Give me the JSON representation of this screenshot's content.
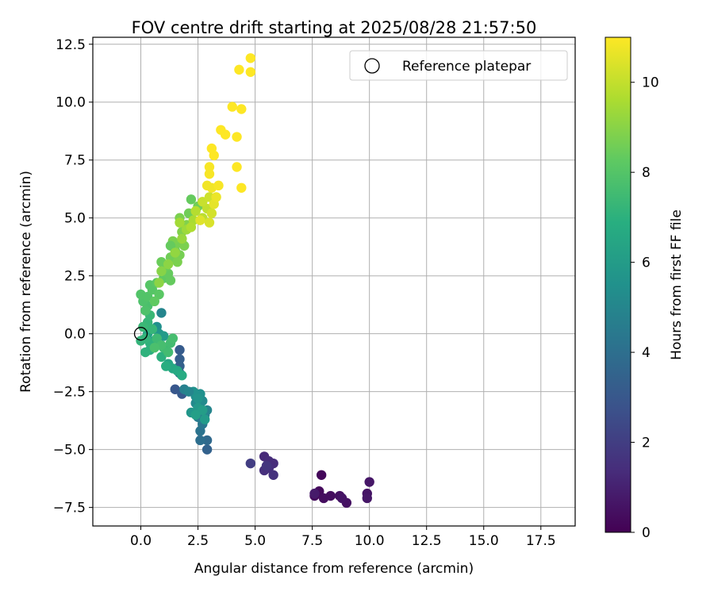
{
  "chart_data": {
    "type": "scatter",
    "title": "FOV centre drift starting at 2025/08/28 21:57:50",
    "xlabel": "Angular distance from reference (arcmin)",
    "ylabel": "Rotation from reference (arcmin)",
    "xlim": [
      -2.1,
      19.0
    ],
    "ylim": [
      -8.3,
      12.8
    ],
    "xticks": [
      0.0,
      2.5,
      5.0,
      7.5,
      10.0,
      12.5,
      15.0,
      17.5
    ],
    "xtick_labels": [
      "0.0",
      "2.5",
      "5.0",
      "7.5",
      "10.0",
      "12.5",
      "15.0",
      "17.5"
    ],
    "yticks": [
      -7.5,
      -5.0,
      -2.5,
      0.0,
      2.5,
      5.0,
      7.5,
      10.0,
      12.5
    ],
    "ytick_labels": [
      "−7.5",
      "−5.0",
      "−2.5",
      "0.0",
      "2.5",
      "5.0",
      "7.5",
      "10.0",
      "12.5"
    ],
    "grid": true,
    "legend": {
      "placement": "top-right",
      "entries": [
        "Reference platepar"
      ]
    },
    "reference_point": {
      "x": 0.0,
      "y": 0.0,
      "label": "Reference platepar"
    },
    "colorbar": {
      "label": "Hours from first FF file",
      "colormap": "viridis",
      "range": [
        0,
        11
      ],
      "ticks": [
        0,
        2,
        4,
        6,
        8,
        10
      ],
      "tick_labels": [
        "0",
        "2",
        "4",
        "6",
        "8",
        "10"
      ]
    },
    "points": [
      {
        "x": 7.9,
        "y": -6.1,
        "c": 0.2
      },
      {
        "x": 7.6,
        "y": -7.0,
        "c": 0.3
      },
      {
        "x": 7.8,
        "y": -6.8,
        "c": 0.3
      },
      {
        "x": 8.0,
        "y": -7.1,
        "c": 0.4
      },
      {
        "x": 8.3,
        "y": -7.0,
        "c": 0.4
      },
      {
        "x": 8.7,
        "y": -7.0,
        "c": 0.5
      },
      {
        "x": 9.0,
        "y": -7.3,
        "c": 0.5
      },
      {
        "x": 8.8,
        "y": -7.1,
        "c": 0.6
      },
      {
        "x": 9.9,
        "y": -6.9,
        "c": 0.6
      },
      {
        "x": 10.0,
        "y": -6.4,
        "c": 0.7
      },
      {
        "x": 9.9,
        "y": -7.1,
        "c": 0.7
      },
      {
        "x": 7.6,
        "y": -6.9,
        "c": 0.8
      },
      {
        "x": 5.4,
        "y": -5.3,
        "c": 1.3
      },
      {
        "x": 5.6,
        "y": -5.5,
        "c": 1.4
      },
      {
        "x": 5.8,
        "y": -5.6,
        "c": 1.4
      },
      {
        "x": 5.4,
        "y": -5.9,
        "c": 1.5
      },
      {
        "x": 5.6,
        "y": -5.8,
        "c": 1.5
      },
      {
        "x": 5.8,
        "y": -6.1,
        "c": 1.6
      },
      {
        "x": 5.5,
        "y": -5.7,
        "c": 1.7
      },
      {
        "x": 4.8,
        "y": -5.6,
        "c": 2.0
      },
      {
        "x": 2.9,
        "y": -5.0,
        "c": 3.5
      },
      {
        "x": 2.9,
        "y": -4.6,
        "c": 3.8
      },
      {
        "x": 2.6,
        "y": -4.6,
        "c": 4.0
      },
      {
        "x": 2.6,
        "y": -4.2,
        "c": 4.2
      },
      {
        "x": 2.7,
        "y": -3.9,
        "c": 4.4
      },
      {
        "x": 2.5,
        "y": -3.6,
        "c": 4.6
      },
      {
        "x": 2.8,
        "y": -3.5,
        "c": 4.8
      },
      {
        "x": 2.9,
        "y": -3.3,
        "c": 5.0
      },
      {
        "x": 2.6,
        "y": -3.2,
        "c": 5.1
      },
      {
        "x": 2.4,
        "y": -3.0,
        "c": 5.2
      },
      {
        "x": 2.7,
        "y": -2.9,
        "c": 5.3
      },
      {
        "x": 2.4,
        "y": -2.7,
        "c": 5.4
      },
      {
        "x": 2.6,
        "y": -2.6,
        "c": 5.5
      },
      {
        "x": 2.3,
        "y": -2.5,
        "c": 5.6
      },
      {
        "x": 2.5,
        "y": -2.8,
        "c": 5.7
      },
      {
        "x": 2.2,
        "y": -3.4,
        "c": 5.8
      },
      {
        "x": 2.5,
        "y": -3.2,
        "c": 5.9
      },
      {
        "x": 2.8,
        "y": -3.7,
        "c": 6.0
      },
      {
        "x": 2.7,
        "y": -3.3,
        "c": 6.1
      },
      {
        "x": 2.4,
        "y": -3.5,
        "c": 6.2
      },
      {
        "x": 1.5,
        "y": -2.4,
        "c": 3.0
      },
      {
        "x": 1.8,
        "y": -2.6,
        "c": 3.1
      },
      {
        "x": 1.7,
        "y": -0.7,
        "c": 3.2
      },
      {
        "x": 1.7,
        "y": -1.1,
        "c": 3.3
      },
      {
        "x": 1.7,
        "y": -1.4,
        "c": 3.4
      },
      {
        "x": 1.7,
        "y": -1.7,
        "c": 3.6
      },
      {
        "x": 1.9,
        "y": -2.4,
        "c": 4.8
      },
      {
        "x": 2.1,
        "y": -2.5,
        "c": 5.0
      },
      {
        "x": 0.9,
        "y": 0.9,
        "c": 5.0
      },
      {
        "x": 0.7,
        "y": 0.3,
        "c": 5.5
      },
      {
        "x": 0.8,
        "y": 0.0,
        "c": 5.8
      },
      {
        "x": 1.0,
        "y": -0.1,
        "c": 6.0
      },
      {
        "x": 0.6,
        "y": -0.3,
        "c": 6.2
      },
      {
        "x": 0.3,
        "y": 0.0,
        "c": 6.4
      },
      {
        "x": 1.2,
        "y": -1.3,
        "c": 6.5
      },
      {
        "x": 1.4,
        "y": -1.5,
        "c": 6.6
      },
      {
        "x": 1.6,
        "y": -1.6,
        "c": 6.7
      },
      {
        "x": 1.8,
        "y": -1.8,
        "c": 6.8
      },
      {
        "x": 1.1,
        "y": -1.4,
        "c": 6.9
      },
      {
        "x": 0.9,
        "y": -1.0,
        "c": 7.0
      },
      {
        "x": 0.4,
        "y": -0.7,
        "c": 7.0
      },
      {
        "x": 0.2,
        "y": -0.8,
        "c": 7.1
      },
      {
        "x": 0.4,
        "y": -0.4,
        "c": 7.1
      },
      {
        "x": 0.0,
        "y": -0.3,
        "c": 7.2
      },
      {
        "x": 0.2,
        "y": -0.2,
        "c": 7.2
      },
      {
        "x": 0.5,
        "y": 0.2,
        "c": 7.3
      },
      {
        "x": 0.3,
        "y": 0.5,
        "c": 7.3
      },
      {
        "x": 0.1,
        "y": 0.3,
        "c": 7.4
      },
      {
        "x": 0.4,
        "y": 0.8,
        "c": 7.4
      },
      {
        "x": 0.7,
        "y": -0.2,
        "c": 7.5
      },
      {
        "x": 1.0,
        "y": -0.6,
        "c": 7.5
      },
      {
        "x": 1.3,
        "y": -0.4,
        "c": 7.6
      },
      {
        "x": 1.2,
        "y": -0.8,
        "c": 7.6
      },
      {
        "x": 0.9,
        "y": -0.5,
        "c": 7.7
      },
      {
        "x": 1.4,
        "y": -0.2,
        "c": 7.7
      },
      {
        "x": 0.6,
        "y": -0.6,
        "c": 7.8
      },
      {
        "x": 0.3,
        "y": 1.2,
        "c": 7.8
      },
      {
        "x": 0.2,
        "y": 1.0,
        "c": 7.9
      },
      {
        "x": 0.1,
        "y": 1.4,
        "c": 7.9
      },
      {
        "x": 0.0,
        "y": 1.7,
        "c": 8.0
      },
      {
        "x": 0.3,
        "y": 1.6,
        "c": 8.0
      },
      {
        "x": 0.5,
        "y": 1.9,
        "c": 8.1
      },
      {
        "x": 0.4,
        "y": 2.1,
        "c": 8.1
      },
      {
        "x": 0.7,
        "y": 2.2,
        "c": 8.2
      },
      {
        "x": 0.8,
        "y": 1.7,
        "c": 8.2
      },
      {
        "x": 0.6,
        "y": 1.4,
        "c": 8.3
      },
      {
        "x": 1.0,
        "y": 2.4,
        "c": 8.3
      },
      {
        "x": 1.2,
        "y": 2.6,
        "c": 8.4
      },
      {
        "x": 1.3,
        "y": 2.3,
        "c": 8.4
      },
      {
        "x": 1.1,
        "y": 2.9,
        "c": 8.5
      },
      {
        "x": 0.9,
        "y": 3.1,
        "c": 8.5
      },
      {
        "x": 1.3,
        "y": 3.3,
        "c": 8.6
      },
      {
        "x": 1.5,
        "y": 3.6,
        "c": 8.6
      },
      {
        "x": 1.7,
        "y": 3.4,
        "c": 8.7
      },
      {
        "x": 1.6,
        "y": 3.9,
        "c": 8.7
      },
      {
        "x": 1.9,
        "y": 3.8,
        "c": 8.8
      },
      {
        "x": 1.4,
        "y": 4.0,
        "c": 8.8
      },
      {
        "x": 1.8,
        "y": 4.4,
        "c": 8.9
      },
      {
        "x": 2.0,
        "y": 4.7,
        "c": 8.9
      },
      {
        "x": 1.7,
        "y": 5.0,
        "c": 8.8
      },
      {
        "x": 2.1,
        "y": 5.2,
        "c": 8.6
      },
      {
        "x": 2.2,
        "y": 5.8,
        "c": 8.4
      },
      {
        "x": 2.5,
        "y": 5.5,
        "c": 8.6
      },
      {
        "x": 1.3,
        "y": 3.8,
        "c": 8.4
      },
      {
        "x": 1.6,
        "y": 3.1,
        "c": 8.8
      },
      {
        "x": 0.9,
        "y": 2.7,
        "c": 9.0
      },
      {
        "x": 0.8,
        "y": 2.2,
        "c": 9.1
      },
      {
        "x": 1.2,
        "y": 3.0,
        "c": 9.1
      },
      {
        "x": 1.5,
        "y": 3.5,
        "c": 9.2
      },
      {
        "x": 1.8,
        "y": 4.1,
        "c": 9.3
      },
      {
        "x": 2.0,
        "y": 4.5,
        "c": 9.4
      },
      {
        "x": 1.7,
        "y": 4.8,
        "c": 9.5
      },
      {
        "x": 2.3,
        "y": 4.9,
        "c": 9.6
      },
      {
        "x": 2.2,
        "y": 4.6,
        "c": 9.7
      },
      {
        "x": 2.4,
        "y": 5.3,
        "c": 9.8
      },
      {
        "x": 2.7,
        "y": 5.0,
        "c": 9.9
      },
      {
        "x": 2.9,
        "y": 5.4,
        "c": 10.0
      },
      {
        "x": 2.7,
        "y": 5.7,
        "c": 10.1
      },
      {
        "x": 3.0,
        "y": 5.9,
        "c": 10.2
      },
      {
        "x": 3.1,
        "y": 5.2,
        "c": 10.3
      },
      {
        "x": 3.0,
        "y": 4.8,
        "c": 10.4
      },
      {
        "x": 2.6,
        "y": 4.9,
        "c": 10.5
      },
      {
        "x": 3.2,
        "y": 5.6,
        "c": 10.6
      },
      {
        "x": 3.3,
        "y": 5.9,
        "c": 10.7
      },
      {
        "x": 3.1,
        "y": 6.3,
        "c": 10.8
      },
      {
        "x": 2.9,
        "y": 6.4,
        "c": 10.8
      },
      {
        "x": 3.4,
        "y": 6.4,
        "c": 10.9
      },
      {
        "x": 3.0,
        "y": 6.9,
        "c": 10.9
      },
      {
        "x": 3.0,
        "y": 7.2,
        "c": 10.9
      },
      {
        "x": 3.2,
        "y": 7.7,
        "c": 11.0
      },
      {
        "x": 3.1,
        "y": 8.0,
        "c": 11.0
      },
      {
        "x": 3.5,
        "y": 8.8,
        "c": 11.0
      },
      {
        "x": 3.7,
        "y": 8.6,
        "c": 11.0
      },
      {
        "x": 4.2,
        "y": 8.5,
        "c": 11.0
      },
      {
        "x": 4.2,
        "y": 7.2,
        "c": 11.0
      },
      {
        "x": 4.4,
        "y": 6.3,
        "c": 11.0
      },
      {
        "x": 4.0,
        "y": 9.8,
        "c": 11.0
      },
      {
        "x": 4.4,
        "y": 9.7,
        "c": 11.0
      },
      {
        "x": 4.3,
        "y": 11.4,
        "c": 11.0
      },
      {
        "x": 4.8,
        "y": 11.9,
        "c": 11.0
      },
      {
        "x": 4.8,
        "y": 11.3,
        "c": 11.0
      }
    ]
  }
}
